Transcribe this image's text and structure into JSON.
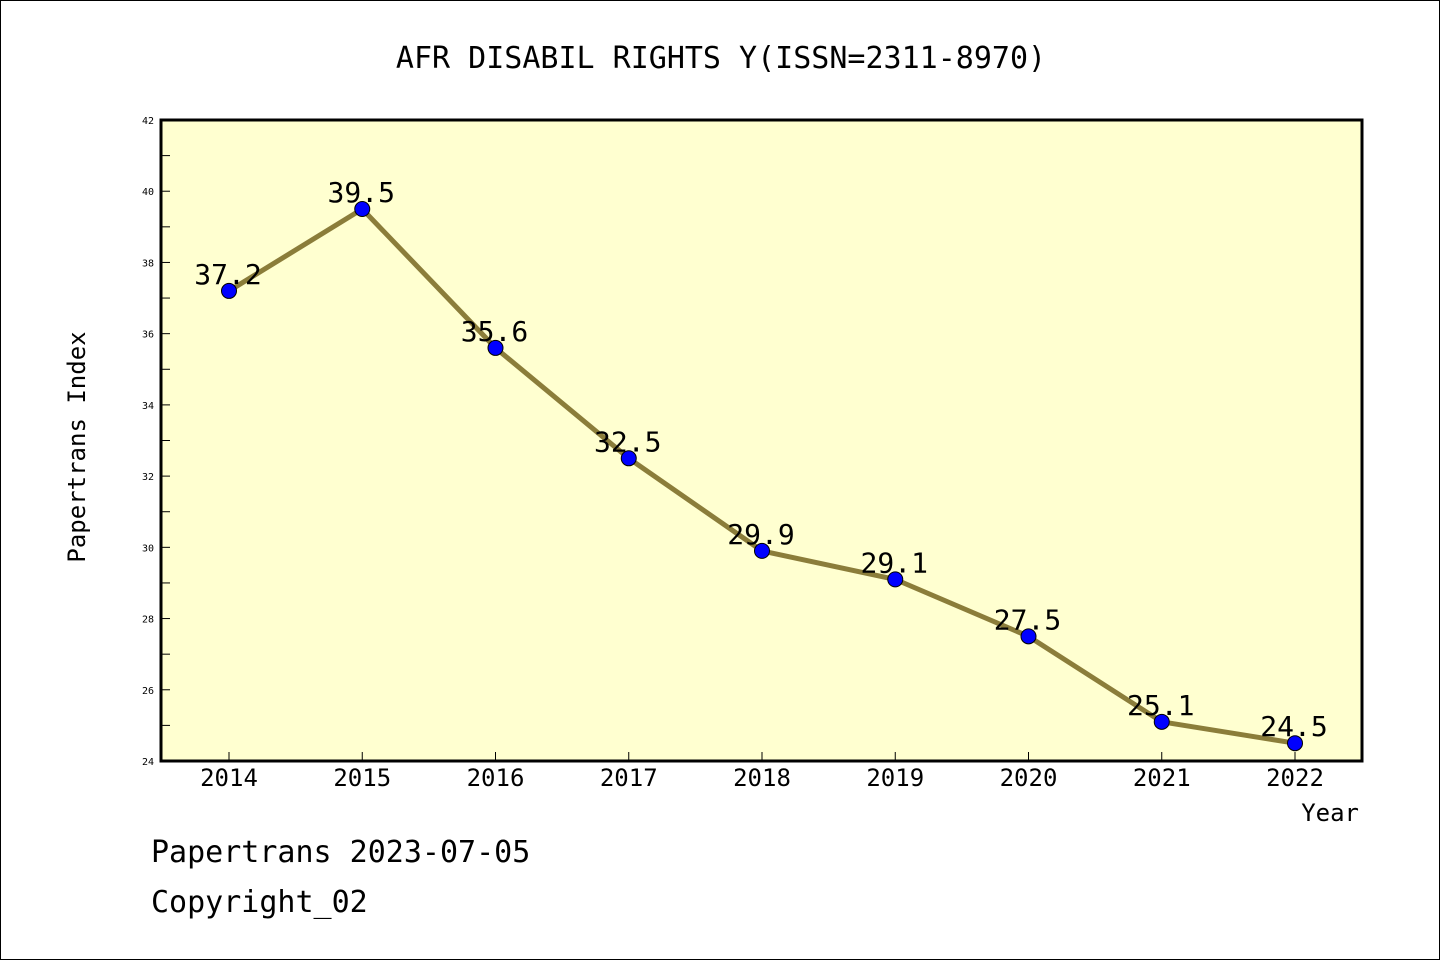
{
  "colors": {
    "background": "#ffffff",
    "plot_background": "#ffffd0",
    "line": "#8b7d3a",
    "marker": "#0000ff",
    "text": "#000000"
  },
  "footer": {
    "line1": "Papertrans 2023-07-05",
    "line2": "Copyright_02"
  },
  "chart_data": {
    "type": "line",
    "title": "AFR DISABIL RIGHTS Y(ISSN=2311-8970)",
    "xlabel": "Year",
    "ylabel": "Papertrans Index",
    "categories": [
      "2014",
      "2015",
      "2016",
      "2017",
      "2018",
      "2019",
      "2020",
      "2021",
      "2022"
    ],
    "series": [
      {
        "values": [
          37.2,
          39.5,
          35.6,
          32.5,
          29.9,
          29.1,
          27.5,
          25.1,
          24.5
        ],
        "data_labels": [
          "37.2",
          "39.5",
          "35.6",
          "32.5",
          "29.9",
          "29.1",
          "27.5",
          "25.1",
          "24.5"
        ]
      }
    ],
    "ylim": [
      24,
      42
    ],
    "y_ticks": [
      "24",
      "26",
      "28",
      "30",
      "32",
      "34",
      "36",
      "38",
      "40",
      "42"
    ],
    "grid": false,
    "legend": "none"
  }
}
